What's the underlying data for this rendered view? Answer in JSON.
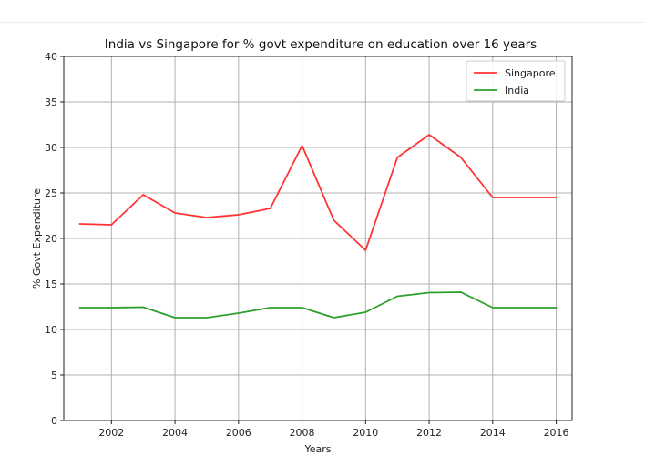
{
  "chart_data": {
    "type": "line",
    "title": "India vs Singapore for % govt expenditure on education over 16 years",
    "xlabel": "Years",
    "ylabel": "% Govt Expenditure",
    "xlim": [
      2000.5,
      2016.5
    ],
    "ylim": [
      0,
      40
    ],
    "x_ticks": [
      2002,
      2004,
      2006,
      2008,
      2010,
      2012,
      2014,
      2016
    ],
    "y_ticks": [
      0,
      5,
      10,
      15,
      20,
      25,
      30,
      35,
      40
    ],
    "grid": true,
    "legend_position": "top-right",
    "x": [
      2001,
      2002,
      2003,
      2004,
      2005,
      2006,
      2007,
      2008,
      2009,
      2010,
      2011,
      2012,
      2013,
      2014,
      2015,
      2016
    ],
    "series": [
      {
        "name": "Singapore",
        "color": "#ff3333",
        "values": [
          21.6,
          21.5,
          24.8,
          22.8,
          22.3,
          22.6,
          23.3,
          30.2,
          22.0,
          18.7,
          28.9,
          31.4,
          28.9,
          24.5,
          24.5,
          24.5
        ]
      },
      {
        "name": "India",
        "color": "#2ca02c",
        "values": [
          12.4,
          12.4,
          12.45,
          11.3,
          11.3,
          11.8,
          12.4,
          12.4,
          11.3,
          11.9,
          13.65,
          14.05,
          14.1,
          12.4,
          12.4,
          12.4
        ]
      }
    ]
  }
}
